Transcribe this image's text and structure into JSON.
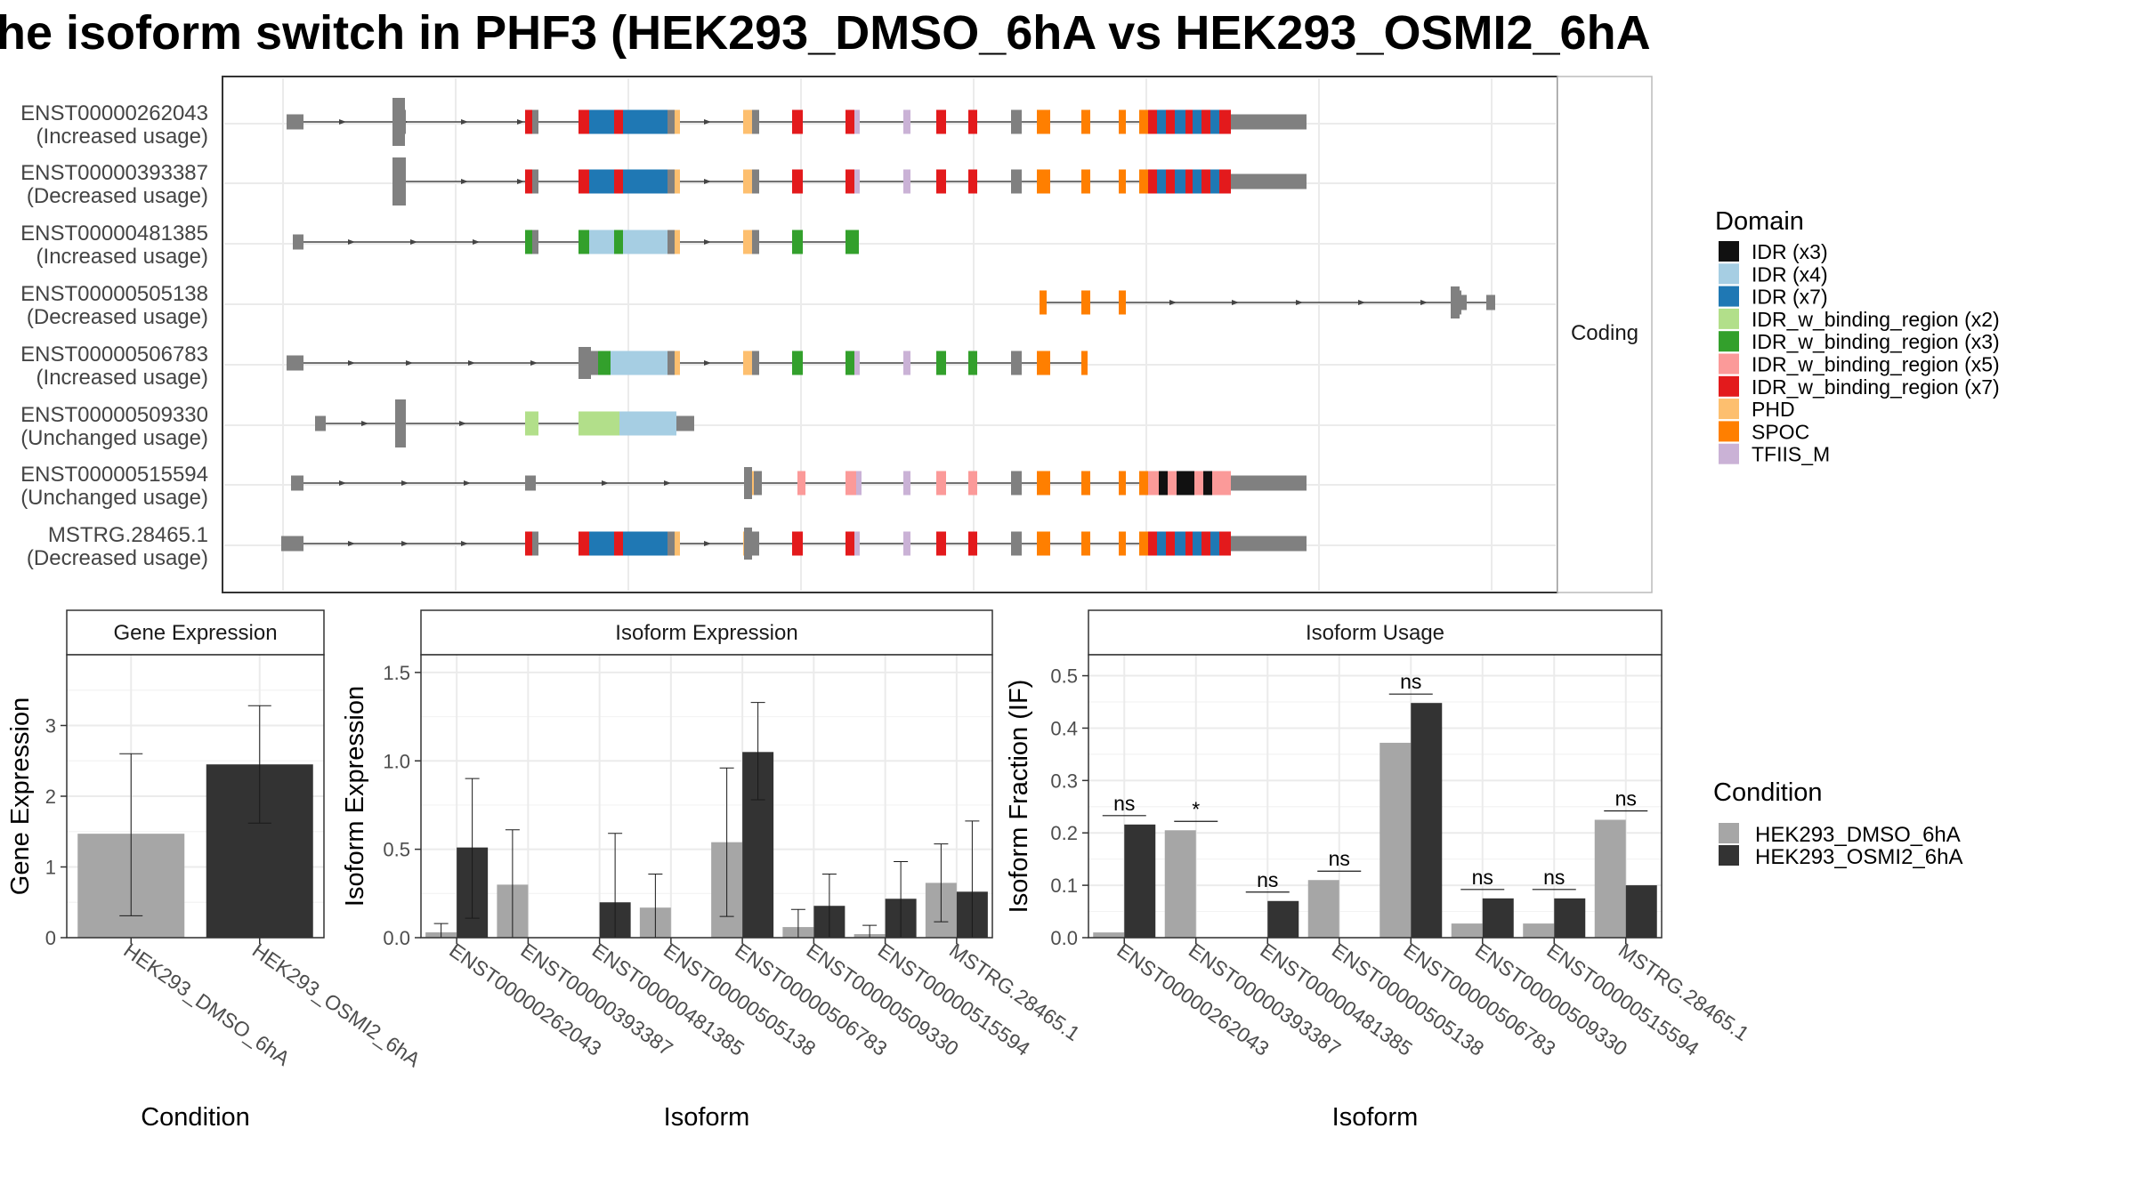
{
  "title": "he isoform switch in PHF3 (HEK293_DMSO_6hA vs HEK293_OSMI2_6hA",
  "colors": {
    "panel_border": "#333333",
    "strip_bg": "#ffffff",
    "grid": "#ebebeb",
    "dmso": "#a6a6a6",
    "osmi2": "#333333",
    "exon_gray": "#808080"
  },
  "structure": {
    "strip_label": "Coding",
    "isoforms": [
      {
        "id": "ENST00000262043",
        "usage": "(Increased usage)"
      },
      {
        "id": "ENST00000393387",
        "usage": "(Decreased usage)"
      },
      {
        "id": "ENST00000481385",
        "usage": "(Increased usage)"
      },
      {
        "id": "ENST00000505138",
        "usage": "(Decreased usage)"
      },
      {
        "id": "ENST00000506783",
        "usage": "(Increased usage)"
      },
      {
        "id": "ENST00000509330",
        "usage": "(Unchanged usage)"
      },
      {
        "id": "ENST00000515594",
        "usage": "(Unchanged usage)"
      },
      {
        "id": "MSTRG.28465.1",
        "usage": "(Decreased usage)"
      }
    ],
    "legend_title": "Domain",
    "domains": [
      {
        "label": "IDR (x3)",
        "color": "#111111"
      },
      {
        "label": "IDR (x4)",
        "color": "#a6cee3"
      },
      {
        "label": "IDR (x7)",
        "color": "#1f78b4"
      },
      {
        "label": "IDR_w_binding_region (x2)",
        "color": "#b2df8a"
      },
      {
        "label": "IDR_w_binding_region (x3)",
        "color": "#33a02c"
      },
      {
        "label": "IDR_w_binding_region (x5)",
        "color": "#fb9a99"
      },
      {
        "label": "IDR_w_binding_region (x7)",
        "color": "#e31a1c"
      },
      {
        "label": "PHD",
        "color": "#fdbf6f"
      },
      {
        "label": "SPOC",
        "color": "#ff7f00"
      },
      {
        "label": "TFIIS_M",
        "color": "#cab2d6"
      }
    ]
  },
  "condition_legend": {
    "title": "Condition",
    "items": [
      {
        "label": "HEK293_DMSO_6hA",
        "color": "#a6a6a6"
      },
      {
        "label": "HEK293_OSMI2_6hA",
        "color": "#333333"
      }
    ]
  },
  "chart_data": [
    {
      "type": "bar",
      "title": "Gene Expression",
      "xlabel": "Condition",
      "ylabel": "Gene Expression",
      "ylim": [
        0,
        4
      ],
      "yticks": [
        0,
        1,
        2,
        3
      ],
      "categories": [
        "HEK293_DMSO_6hA",
        "HEK293_OSMI2_6hA"
      ],
      "values": [
        1.47,
        2.45
      ],
      "err_low": [
        0.31,
        1.62
      ],
      "err_high": [
        2.6,
        3.28
      ]
    },
    {
      "type": "bar",
      "title": "Isoform Expression",
      "xlabel": "Isoform",
      "ylabel": "Isoform Expression",
      "ylim": [
        0,
        1.6
      ],
      "yticks": [
        0.0,
        0.5,
        1.0,
        1.5
      ],
      "categories": [
        "ENST00000262043",
        "ENST00000393387",
        "ENST00000481385",
        "ENST00000505138",
        "ENST00000506783",
        "ENST00000509330",
        "ENST00000515594",
        "MSTRG.28465.1"
      ],
      "series": [
        {
          "name": "HEK293_DMSO_6hA",
          "values": [
            0.03,
            0.3,
            0.0,
            0.17,
            0.54,
            0.06,
            0.02,
            0.31
          ],
          "err_low": [
            0.0,
            0.0,
            0.0,
            0.0,
            0.12,
            0.0,
            0.0,
            0.09
          ],
          "err_high": [
            0.08,
            0.61,
            0.0,
            0.36,
            0.96,
            0.16,
            0.07,
            0.53
          ]
        },
        {
          "name": "HEK293_OSMI2_6hA",
          "values": [
            0.51,
            0.0,
            0.2,
            0.0,
            1.05,
            0.18,
            0.22,
            0.26
          ],
          "err_low": [
            0.11,
            0.0,
            0.0,
            0.0,
            0.78,
            0.0,
            0.0,
            0.0
          ],
          "err_high": [
            0.9,
            0.0,
            0.59,
            0.0,
            1.33,
            0.36,
            0.43,
            0.66
          ]
        }
      ]
    },
    {
      "type": "bar",
      "title": "Isoform Usage",
      "xlabel": "Isoform",
      "ylabel": "Isoform Fraction (IF)",
      "ylim": [
        0,
        0.54
      ],
      "yticks": [
        0.0,
        0.1,
        0.2,
        0.3,
        0.4,
        0.5
      ],
      "categories": [
        "ENST00000262043",
        "ENST00000393387",
        "ENST00000481385",
        "ENST00000505138",
        "ENST00000506783",
        "ENST00000509330",
        "ENST00000515594",
        "MSTRG.28465.1"
      ],
      "series": [
        {
          "name": "HEK293_DMSO_6hA",
          "values": [
            0.01,
            0.205,
            0.0,
            0.11,
            0.372,
            0.027,
            0.027,
            0.225
          ]
        },
        {
          "name": "HEK293_OSMI2_6hA",
          "values": [
            0.216,
            0.0,
            0.07,
            0.0,
            0.448,
            0.075,
            0.075,
            0.1
          ]
        }
      ],
      "significance": [
        "ns",
        "*",
        "ns",
        "ns",
        "ns",
        "ns",
        "ns",
        "ns"
      ]
    }
  ]
}
